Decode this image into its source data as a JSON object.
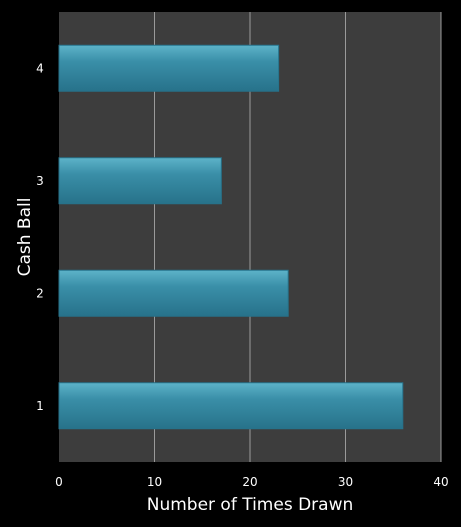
{
  "chart_data": {
    "type": "bar",
    "orientation": "horizontal",
    "categories": [
      "1",
      "2",
      "3",
      "4"
    ],
    "values": [
      36,
      24,
      17,
      23
    ],
    "xlabel": "Number of Times Drawn",
    "ylabel": "Cash Ball",
    "xlim": [
      0,
      40
    ],
    "xticks": [
      "0",
      "10",
      "20",
      "30",
      "40"
    ],
    "grid": "vertical",
    "legend": "none",
    "colors": {
      "background": "#000000",
      "plot_area": "#3d3d3d",
      "bar_fill": "#3a8fa8",
      "bar_highlight": "#5db3c9",
      "bar_edge": "#27728a",
      "gridline": "#9a9a9a",
      "text": "#ffffff"
    }
  }
}
